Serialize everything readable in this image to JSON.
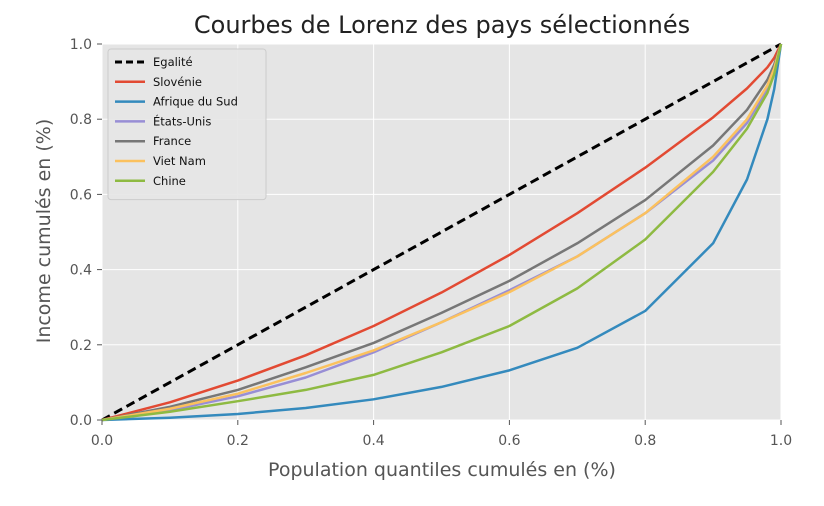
{
  "chart_data": {
    "type": "line",
    "title": "Courbes de Lorenz des pays sélectionnés",
    "xlabel": "Population quantiles cumulés en (%)",
    "ylabel": "Income cumulés en (%)",
    "xlim": [
      0,
      1
    ],
    "ylim": [
      0,
      1
    ],
    "x_ticks": [
      "0.0",
      "0.2",
      "0.4",
      "0.6",
      "0.8",
      "1.0"
    ],
    "y_ticks": [
      "0.0",
      "0.2",
      "0.4",
      "0.6",
      "0.8",
      "1.0"
    ],
    "grid": true,
    "legend_position": "upper left",
    "background_color": "#e5e5e5",
    "x": [
      0.0,
      0.1,
      0.2,
      0.3,
      0.4,
      0.5,
      0.6,
      0.7,
      0.8,
      0.9,
      0.95,
      0.98,
      0.99,
      1.0
    ],
    "series": [
      {
        "name": "Egalité",
        "color": "#000000",
        "dashed": true,
        "values": [
          0.0,
          0.1,
          0.2,
          0.3,
          0.4,
          0.5,
          0.6,
          0.7,
          0.8,
          0.9,
          0.95,
          0.98,
          0.99,
          1.0
        ]
      },
      {
        "name": "Slovénie",
        "color": "#e24a33",
        "values": [
          0.0,
          0.047,
          0.105,
          0.172,
          0.25,
          0.339,
          0.439,
          0.55,
          0.671,
          0.805,
          0.882,
          0.938,
          0.963,
          1.0
        ]
      },
      {
        "name": "Afrique du Sud",
        "color": "#348abd",
        "values": [
          0.0,
          0.006,
          0.016,
          0.032,
          0.055,
          0.088,
          0.132,
          0.192,
          0.29,
          0.47,
          0.64,
          0.8,
          0.88,
          1.0
        ]
      },
      {
        "name": "États-Unis",
        "color": "#988ed5",
        "values": [
          0.0,
          0.026,
          0.063,
          0.113,
          0.18,
          0.26,
          0.345,
          0.435,
          0.55,
          0.69,
          0.79,
          0.88,
          0.925,
          1.0
        ]
      },
      {
        "name": "France",
        "color": "#777777",
        "values": [
          0.0,
          0.035,
          0.08,
          0.14,
          0.205,
          0.285,
          0.37,
          0.47,
          0.585,
          0.73,
          0.825,
          0.905,
          0.945,
          1.0
        ]
      },
      {
        "name": "Viet Nam",
        "color": "#fbc15e",
        "values": [
          0.0,
          0.03,
          0.07,
          0.125,
          0.185,
          0.26,
          0.34,
          0.435,
          0.55,
          0.7,
          0.8,
          0.89,
          0.935,
          1.0
        ]
      },
      {
        "name": "Chine",
        "color": "#8eba42",
        "values": [
          0.0,
          0.022,
          0.05,
          0.08,
          0.12,
          0.18,
          0.25,
          0.35,
          0.48,
          0.66,
          0.775,
          0.87,
          0.92,
          1.0
        ]
      }
    ]
  }
}
